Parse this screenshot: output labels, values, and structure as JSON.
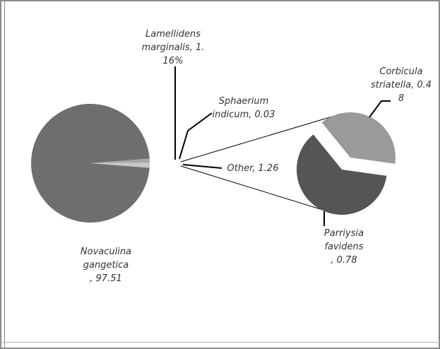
{
  "chart_data": {
    "type": "pie",
    "subtype": "bar-of-pie",
    "colors": {
      "Novaculina gangetica": "#6e6e6e",
      "Lamellidens marginalis": "#a6a6a6",
      "Sphaerium indicum": "#d9d9d9",
      "Other": "#c8c8c8",
      "Corbicula striatella": "#9a9a9a",
      "Parriysia favidens": "#555555",
      "connector": "#000000"
    },
    "main_pie": [
      {
        "name": "Novaculina gangetica",
        "value": 97.51,
        "label_lines": [
          "Novaculina",
          "gangetica",
          ", 97.51"
        ]
      },
      {
        "name": "Lamellidens marginalis",
        "value": 1.16,
        "label_lines": [
          "Lamellidens",
          "marginalis, 1.",
          "16%"
        ]
      },
      {
        "name": "Sphaerium indicum",
        "value": 0.03,
        "label_lines": [
          "Sphaerium",
          "indicum, 0.03"
        ]
      },
      {
        "name": "Other",
        "value": 1.26,
        "label_lines": [
          "Other, 1.26"
        ]
      }
    ],
    "secondary_pie": [
      {
        "name": "Corbicula striatella",
        "value": 0.48,
        "label_lines": [
          "Corbicula",
          "striatella, 0.4",
          "8"
        ]
      },
      {
        "name": "Parriysia favidens",
        "value": 0.78,
        "label_lines": [
          "Parriysia",
          "favidens",
          ", 0.78"
        ]
      }
    ]
  }
}
